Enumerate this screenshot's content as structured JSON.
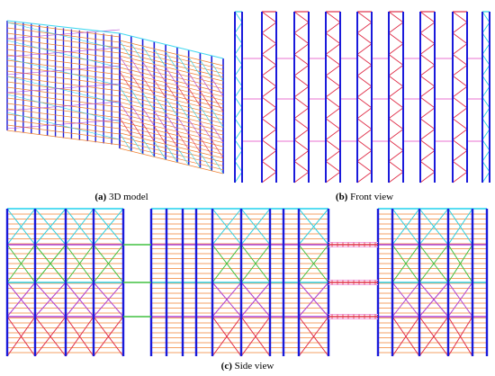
{
  "figure": {
    "panel_a": {
      "label": "(a)",
      "caption": "3D model"
    },
    "panel_b": {
      "label": "(b)",
      "caption": "Front view"
    },
    "panel_c": {
      "label": "(c)",
      "caption": "Side view"
    }
  },
  "colors": {
    "upright": "#1a1adb",
    "beam": "#f08030",
    "bracing_red": "#e0304a",
    "bracing_cyan": "#30d0e0",
    "bracing_green": "#40c040",
    "tie_pink": "#f0a0e0",
    "connector_magenta": "#b040d0",
    "cap_cyan": "#40d8f0",
    "grey_brace": "#808080"
  }
}
